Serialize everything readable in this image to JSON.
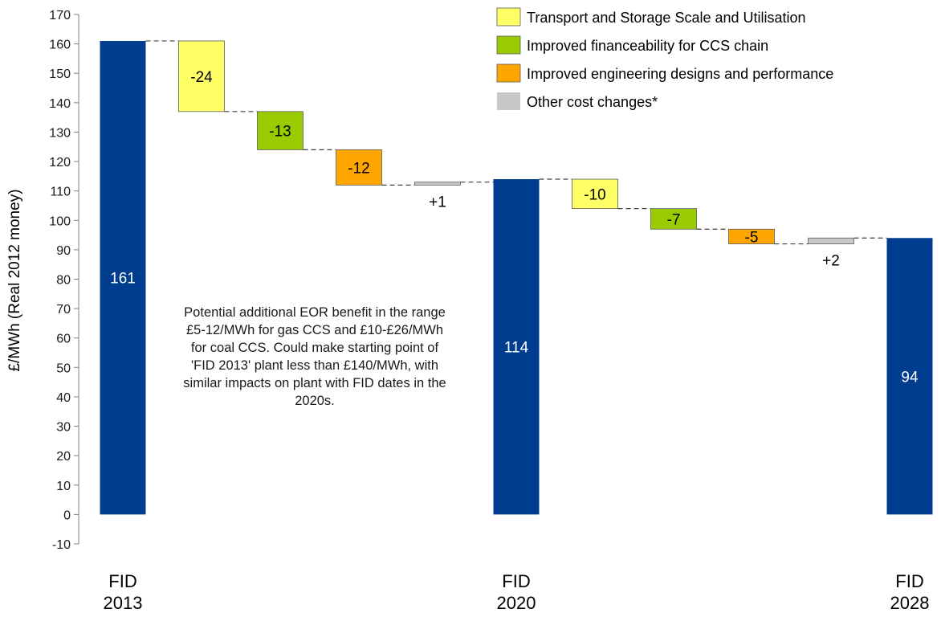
{
  "chart_data": {
    "type": "waterfall",
    "ylabel": "£/MWh (Real 2012 money)",
    "ylim": [
      -10,
      170
    ],
    "yticks": [
      -10,
      0,
      10,
      20,
      30,
      40,
      50,
      60,
      70,
      80,
      90,
      100,
      110,
      120,
      130,
      140,
      150,
      160,
      170
    ],
    "legend": [
      {
        "name": "Transport and Storage Scale and Utilisation",
        "color": "#ffff66"
      },
      {
        "name": "Improved financeability for CCS chain",
        "color": "#99cc00"
      },
      {
        "name": "Improved engineering designs and performance",
        "color": "#ffa500"
      },
      {
        "name": "Other cost changes*",
        "color": "#c8c8c8"
      }
    ],
    "legend_position": "top-right",
    "steps": [
      {
        "kind": "total",
        "category": "FID 2013",
        "value": 161,
        "label": "161",
        "color": "#003d8f"
      },
      {
        "kind": "delta",
        "value": -24,
        "label": "-24",
        "color": "#ffff66"
      },
      {
        "kind": "delta",
        "value": -13,
        "label": "-13",
        "color": "#99cc00"
      },
      {
        "kind": "delta",
        "value": -12,
        "label": "-12",
        "color": "#ffa500"
      },
      {
        "kind": "delta",
        "value": 1,
        "label": "+1",
        "color": "#c8c8c8"
      },
      {
        "kind": "total",
        "category": "FID 2020",
        "value": 114,
        "label": "114",
        "color": "#003d8f"
      },
      {
        "kind": "delta",
        "value": -10,
        "label": "-10",
        "color": "#ffff66"
      },
      {
        "kind": "delta",
        "value": -7,
        "label": "-7",
        "color": "#99cc00"
      },
      {
        "kind": "delta",
        "value": -5,
        "label": "-5",
        "color": "#ffa500"
      },
      {
        "kind": "delta",
        "value": 2,
        "label": "+2",
        "color": "#c8c8c8"
      },
      {
        "kind": "total",
        "category": "FID 2028",
        "value": 94,
        "label": "94",
        "color": "#003d8f"
      }
    ],
    "annotation": "Potential additional EOR benefit in the range £5-12/MWh for gas CCS and £10-£26/MWh for coal CCS. Could make starting point of 'FID 2013' plant less than £140/MWh, with similar impacts on plant with FID dates in the 2020s."
  }
}
